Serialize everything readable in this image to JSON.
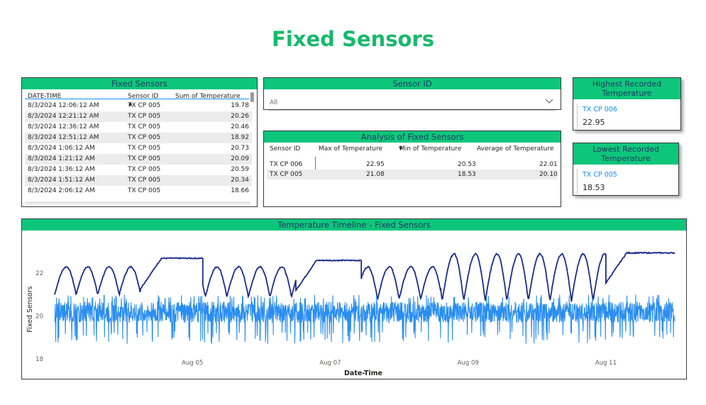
{
  "page": {
    "title": "Fixed Sensors"
  },
  "table": {
    "title": "Fixed Sensors",
    "columns": [
      "DATE-TIME",
      "Sensor ID",
      "Sum of Temperature"
    ],
    "rows": [
      [
        "8/3/2024 12:06:12 AM",
        "TX CP 005",
        "19.78"
      ],
      [
        "8/3/2024 12:21:12 AM",
        "TX CP 005",
        "20.26"
      ],
      [
        "8/3/2024 12:36:12 AM",
        "TX CP 005",
        "20.46"
      ],
      [
        "8/3/2024 12:51:12 AM",
        "TX CP 005",
        "18.92"
      ],
      [
        "8/3/2024 1:06:12 AM",
        "TX CP 005",
        "20.73"
      ],
      [
        "8/3/2024 1:21:12 AM",
        "TX CP 005",
        "20.09"
      ],
      [
        "8/3/2024 1:36:12 AM",
        "TX CP 005",
        "20.59"
      ],
      [
        "8/3/2024 1:51:12 AM",
        "TX CP 005",
        "20.34"
      ],
      [
        "8/3/2024 2:06:12 AM",
        "TX CP 005",
        "18.66"
      ]
    ]
  },
  "slicer": {
    "title": "Sensor ID",
    "value": "All"
  },
  "analysis": {
    "title": "Analysis of Fixed Sensors",
    "columns": [
      "Sensor ID",
      "Max of Temperature",
      "Min of Temperature",
      "Average of Temperature"
    ],
    "rows": [
      [
        "TX CP 006",
        "22.95",
        "20.53",
        "22.01"
      ],
      [
        "TX CP 005",
        "21.08",
        "18.53",
        "20.10"
      ]
    ]
  },
  "highest": {
    "title": "Highest Recorded Temperature",
    "sensor": "TX CP 006",
    "value": "22.95"
  },
  "lowest": {
    "title": "Lowest Recorded Temperature",
    "sensor": "TX CP 005",
    "value": "18.53"
  },
  "chart_data": {
    "type": "line",
    "title": "Temperature Timeline - Fixed Sensors",
    "xlabel": "Date-Time",
    "ylabel": "Fixed Sensors",
    "x_range": [
      "2024-08-03",
      "2024-08-11T23:59"
    ],
    "ylim": [
      18,
      23.3
    ],
    "y_ticks": [
      18,
      20,
      22
    ],
    "x_ticks": [
      "Aug 05",
      "Aug 07",
      "Aug 09",
      "Aug 11"
    ],
    "grid": false,
    "series": [
      {
        "id": "TX CP 006",
        "color": "#1a2b8c",
        "pattern": [
          {
            "day_from": 0.0,
            "day_to": 1.25,
            "kind": "daily",
            "low": 21.0,
            "high": 22.3
          },
          {
            "day_from": 1.25,
            "day_to": 2.15,
            "kind": "plateau",
            "value": 22.7
          },
          {
            "day_from": 2.15,
            "day_to": 3.5,
            "kind": "daily",
            "low": 20.9,
            "high": 22.3
          },
          {
            "day_from": 3.5,
            "day_to": 4.45,
            "kind": "plateau",
            "value": 22.6
          },
          {
            "day_from": 4.45,
            "day_to": 5.6,
            "kind": "daily",
            "low": 20.8,
            "high": 22.3
          },
          {
            "day_from": 5.6,
            "day_to": 8.0,
            "kind": "daily",
            "low": 20.7,
            "high": 22.9
          },
          {
            "day_from": 8.0,
            "day_to": 9.0,
            "kind": "plateau",
            "value": 22.95
          }
        ]
      },
      {
        "id": "TX CP 005",
        "color": "#2a8ef0",
        "pattern": [
          {
            "day_from": 0.0,
            "day_to": 9.0,
            "kind": "noisy",
            "low": 18.7,
            "high": 21.0,
            "center": 20.2
          }
        ]
      }
    ]
  }
}
